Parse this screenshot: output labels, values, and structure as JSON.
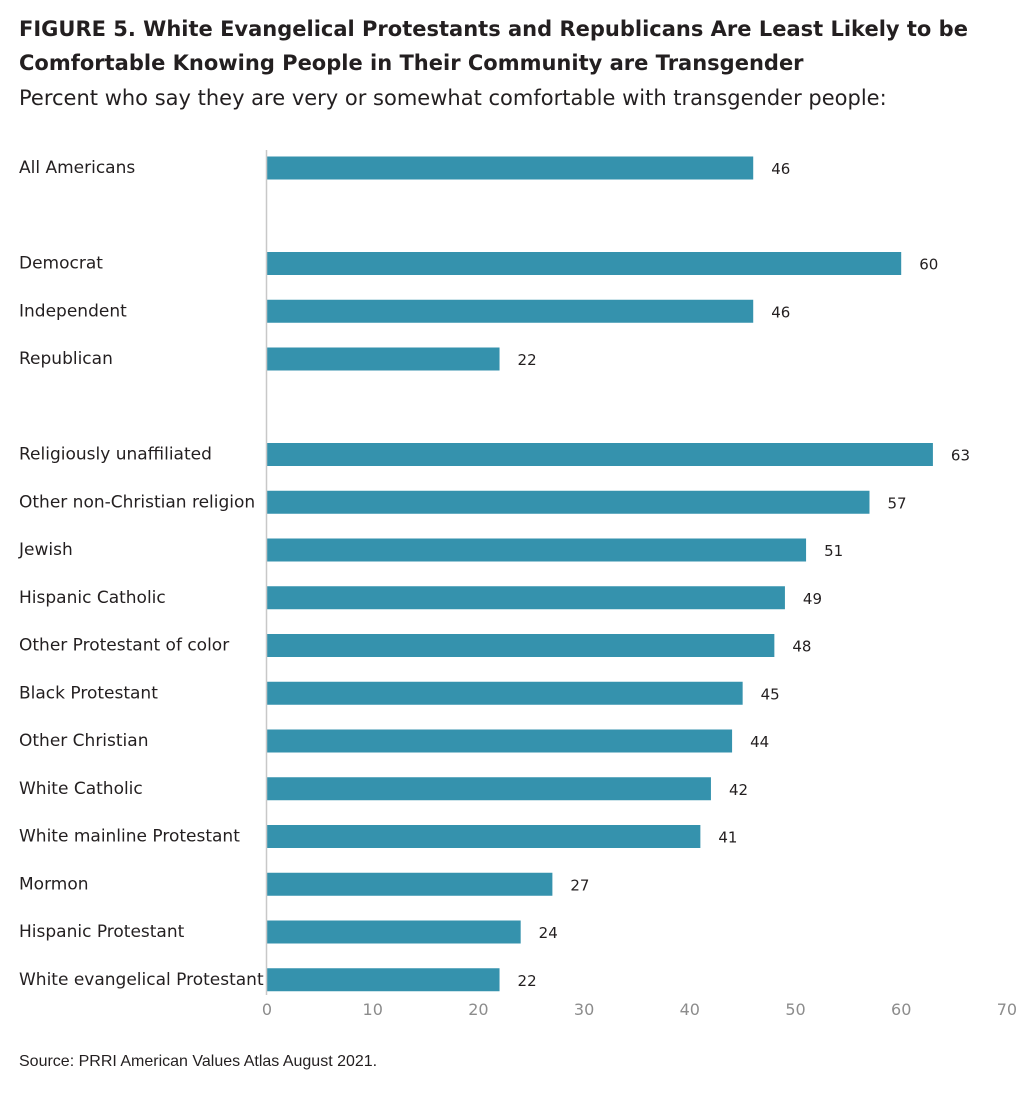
{
  "title": "FIGURE 5.  White Evangelical Protestants and Republicans Are Least Likely to be Comfortable Knowing People in Their Community are Transgender",
  "subtitle": "Percent who say they are very or somewhat comfortable with transgender people:",
  "source": "Source: PRRI American Values Atlas August 2021.",
  "colors": {
    "bar": "#3592ad",
    "axis": "#c8c8c8"
  },
  "chart_data": {
    "type": "bar",
    "orientation": "horizontal",
    "categories": [
      "All Americans",
      "Democrat",
      "Independent",
      "Republican",
      "Religiously unaffiliated",
      "Other non-Christian religion",
      "Jewish",
      "Hispanic Catholic",
      "Other Protestant of color",
      "Black Protestant",
      "Other Christian",
      "White Catholic",
      "White mainline Protestant",
      "Mormon",
      "Hispanic Protestant",
      "White evangelical Protestant"
    ],
    "groups": [
      [
        0
      ],
      [
        1,
        2,
        3
      ],
      [
        4,
        5,
        6,
        7,
        8,
        9,
        10,
        11,
        12,
        13,
        14,
        15
      ]
    ],
    "values": [
      46,
      60,
      46,
      22,
      63,
      57,
      51,
      49,
      48,
      45,
      44,
      42,
      41,
      27,
      24,
      22
    ],
    "xlim": [
      0,
      70
    ],
    "xticks": [
      0,
      10,
      20,
      30,
      40,
      50,
      60,
      70
    ],
    "grid": false,
    "legend": "none"
  }
}
